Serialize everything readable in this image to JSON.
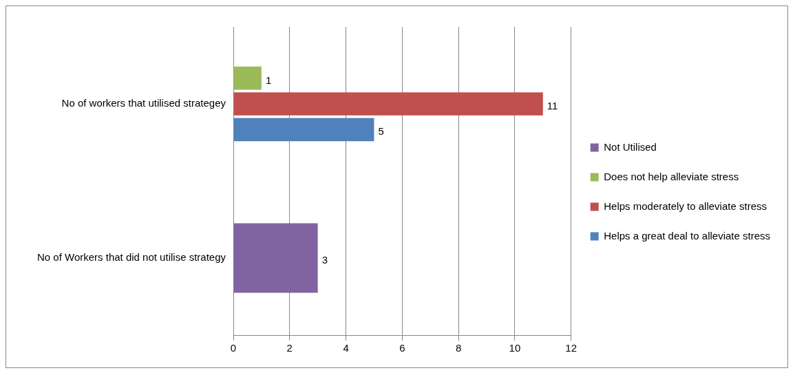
{
  "chart_data": {
    "type": "bar",
    "orientation": "horizontal",
    "categories": [
      "No of workers that utilised strategey",
      "No of Workers that did not utilise strategy"
    ],
    "series": [
      {
        "name": "Not Utilised",
        "color": "#8064a2",
        "values": [
          null,
          3
        ]
      },
      {
        "name": "Does not help alleviate stress",
        "color": "#9bbb59",
        "values": [
          1,
          null
        ]
      },
      {
        "name": "Helps moderately to alleviate stress",
        "color": "#c0504d",
        "values": [
          11,
          null
        ]
      },
      {
        "name": "Helps a great deal to alleviate stress",
        "color": "#4f81bd",
        "values": [
          5,
          null
        ]
      }
    ],
    "xlim": [
      0,
      12
    ],
    "xticks": [
      0,
      2,
      4,
      6,
      8,
      10,
      12
    ],
    "grid": "x",
    "legend": "right",
    "data_labels": true
  }
}
